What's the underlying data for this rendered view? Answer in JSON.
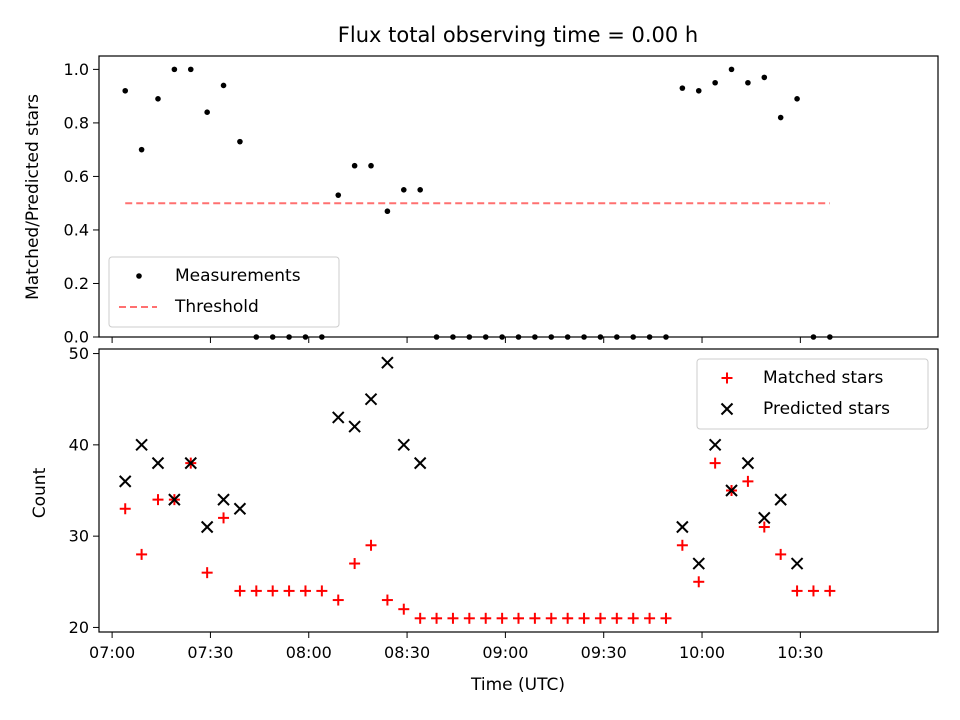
{
  "chart_data": [
    {
      "type": "scatter",
      "title": "Flux total observing time = 0.00 h",
      "xlabel": "",
      "ylabel": "Matched/Predicted stars",
      "xlim": [
        "06:56",
        "11:12"
      ],
      "ylim": [
        0,
        1.05
      ],
      "yticks": [
        0.0,
        0.2,
        0.4,
        0.6,
        0.8,
        1.0
      ],
      "ytick_labels": [
        "0.0",
        "0.2",
        "0.4",
        "0.6",
        "0.8",
        "1.0"
      ],
      "legend_position": "lower-left",
      "series": [
        {
          "name": "Measurements",
          "marker": "dot",
          "color": "#000000",
          "x": [
            "07:04",
            "07:09",
            "07:14",
            "07:19",
            "07:24",
            "07:29",
            "07:34",
            "07:39",
            "07:44",
            "07:49",
            "07:54",
            "07:59",
            "08:04",
            "08:09",
            "08:14",
            "08:19",
            "08:24",
            "08:29",
            "08:34",
            "08:39",
            "08:44",
            "08:49",
            "08:54",
            "08:59",
            "09:04",
            "09:09",
            "09:14",
            "09:19",
            "09:24",
            "09:29",
            "09:34",
            "09:39",
            "09:44",
            "09:49",
            "09:54",
            "09:59",
            "10:04",
            "10:09",
            "10:14",
            "10:19",
            "10:24",
            "10:29",
            "10:34",
            "10:39"
          ],
          "y": [
            0.92,
            0.7,
            0.89,
            1.0,
            1.0,
            0.84,
            0.94,
            0.73,
            0.0,
            0.0,
            0.0,
            0.0,
            0.0,
            0.53,
            0.64,
            0.64,
            0.47,
            0.55,
            0.55,
            0.0,
            0.0,
            0.0,
            0.0,
            0.0,
            0.0,
            0.0,
            0.0,
            0.0,
            0.0,
            0.0,
            0.0,
            0.0,
            0.0,
            0.0,
            0.93,
            0.92,
            0.95,
            1.0,
            0.95,
            0.97,
            0.82,
            0.89,
            0.0,
            0.0
          ]
        },
        {
          "name": "Threshold",
          "line_style": "dashed",
          "color": "#ff7070",
          "x": [
            "07:04",
            "10:39"
          ],
          "y": [
            0.5,
            0.5
          ]
        }
      ]
    },
    {
      "type": "scatter",
      "title": "",
      "xlabel": "Time (UTC)",
      "ylabel": "Count",
      "xlim": [
        "06:56",
        "11:12"
      ],
      "ylim": [
        19.5,
        50.5
      ],
      "xticks": [
        "07:00",
        "07:30",
        "08:00",
        "08:30",
        "09:00",
        "09:30",
        "10:00",
        "10:30"
      ],
      "yticks": [
        20,
        30,
        40,
        50
      ],
      "ytick_labels": [
        "20",
        "30",
        "40",
        "50"
      ],
      "legend_position": "upper-right",
      "series": [
        {
          "name": "Matched stars",
          "marker": "plus",
          "color": "#ff0000",
          "x": [
            "07:04",
            "07:09",
            "07:14",
            "07:19",
            "07:24",
            "07:29",
            "07:34",
            "07:39",
            "07:44",
            "07:49",
            "07:54",
            "07:59",
            "08:04",
            "08:09",
            "08:14",
            "08:19",
            "08:24",
            "08:29",
            "08:34",
            "08:39",
            "08:44",
            "08:49",
            "08:54",
            "08:59",
            "09:04",
            "09:09",
            "09:14",
            "09:19",
            "09:24",
            "09:29",
            "09:34",
            "09:39",
            "09:44",
            "09:49",
            "09:54",
            "09:59",
            "10:04",
            "10:09",
            "10:14",
            "10:19",
            "10:24",
            "10:29",
            "10:34",
            "10:39"
          ],
          "y": [
            33,
            28,
            34,
            34,
            38,
            26,
            32,
            24,
            24,
            24,
            24,
            24,
            24,
            23,
            27,
            29,
            23,
            22,
            21,
            21,
            21,
            21,
            21,
            21,
            21,
            21,
            21,
            21,
            21,
            21,
            21,
            21,
            21,
            21,
            29,
            25,
            38,
            35,
            36,
            31,
            28,
            24,
            24,
            24
          ]
        },
        {
          "name": "Predicted stars",
          "marker": "x",
          "color": "#000000",
          "x": [
            "07:04",
            "07:09",
            "07:14",
            "07:19",
            "07:24",
            "07:29",
            "07:34",
            "07:39",
            "08:09",
            "08:14",
            "08:19",
            "08:24",
            "08:29",
            "08:34",
            "09:54",
            "09:59",
            "10:04",
            "10:09",
            "10:14",
            "10:19",
            "10:24",
            "10:29"
          ],
          "y": [
            36,
            40,
            38,
            34,
            38,
            31,
            34,
            33,
            43,
            42,
            45,
            49,
            40,
            38,
            31,
            27,
            40,
            35,
            38,
            32,
            34,
            27
          ]
        }
      ]
    }
  ]
}
